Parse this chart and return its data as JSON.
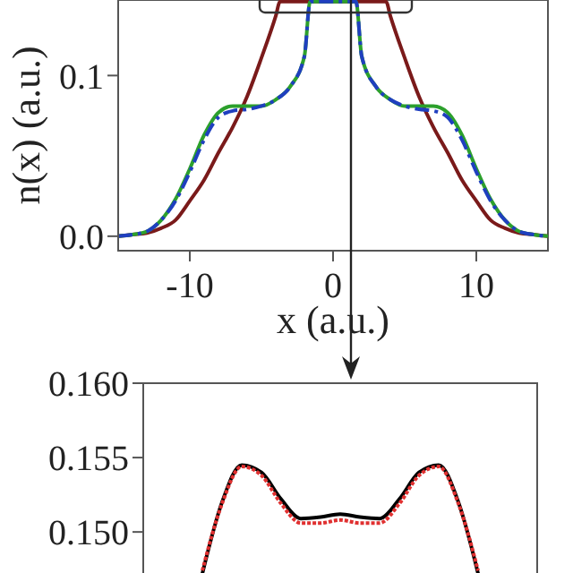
{
  "chart_data": [
    {
      "type": "line",
      "xlabel": "x (a.u.)",
      "ylabel": "n(x) (a.u.)",
      "xlim": [
        -15,
        15
      ],
      "ylim": [
        -0.009,
        0.147
      ],
      "xticks": [
        -10,
        0,
        10
      ],
      "yticks": [
        {
          "value": 0,
          "label": "0.0"
        },
        0.1
      ],
      "grid": false,
      "series": [
        {
          "color": "#7a1a1a",
          "x": [
            -15,
            -14,
            -13,
            -12,
            -11,
            -10,
            -9,
            -8,
            -7,
            -6,
            -5,
            -4,
            -3.7,
            3.7,
            4,
            5,
            6,
            7,
            8,
            9,
            10,
            11,
            12,
            13,
            14,
            15
          ],
          "values": [
            0,
            0.001,
            0.002,
            0.005,
            0.01,
            0.022,
            0.035,
            0.052,
            0.068,
            0.087,
            0.111,
            0.137,
            0.146,
            0.146,
            0.137,
            0.111,
            0.087,
            0.068,
            0.052,
            0.035,
            0.022,
            0.01,
            0.005,
            0.002,
            0.001,
            0
          ]
        },
        {
          "color": "#2ca02c",
          "x": [
            -15,
            -14,
            -13,
            -12,
            -11,
            -10,
            -9,
            -8,
            -7,
            -6,
            -5,
            -4,
            -3,
            -2,
            -1.6,
            1.6,
            2,
            3,
            4,
            5,
            6,
            7,
            8,
            9,
            10,
            11,
            12,
            13,
            14,
            15
          ],
          "values": [
            0,
            0.001,
            0.003,
            0.01,
            0.023,
            0.042,
            0.063,
            0.077,
            0.081,
            0.081,
            0.081,
            0.085,
            0.093,
            0.112,
            0.146,
            0.146,
            0.112,
            0.093,
            0.085,
            0.081,
            0.081,
            0.081,
            0.077,
            0.063,
            0.042,
            0.023,
            0.01,
            0.003,
            0.001,
            0
          ]
        },
        {
          "color": "#1f3fbf",
          "line_style": "dashed",
          "x": [
            -15,
            -14,
            -13,
            -12,
            -11,
            -10,
            -9,
            -8,
            -7,
            -6,
            -5,
            -4,
            -3,
            -2,
            -1.6,
            1.6,
            2,
            3,
            4,
            5,
            6,
            7,
            8,
            9,
            10,
            11,
            12,
            13,
            14,
            15
          ],
          "values": [
            0,
            0.001,
            0.003,
            0.01,
            0.022,
            0.04,
            0.06,
            0.074,
            0.078,
            0.079,
            0.081,
            0.085,
            0.093,
            0.112,
            0.146,
            0.146,
            0.112,
            0.093,
            0.085,
            0.081,
            0.079,
            0.078,
            0.074,
            0.06,
            0.04,
            0.022,
            0.01,
            0.003,
            0.001,
            0
          ]
        }
      ]
    },
    {
      "type": "line",
      "tick_labels": "y",
      "ylim": [
        0.147,
        0.16
      ],
      "yticks": [
        {
          "value": 0.15,
          "label": "0.150"
        },
        0.155,
        {
          "value": 0.16,
          "label": "0.160"
        }
      ],
      "grid": false,
      "categories": [
        null,
        null,
        null,
        null,
        null,
        null,
        null,
        null,
        null,
        null,
        null,
        null,
        null,
        null,
        null,
        null,
        null,
        null,
        null,
        null,
        null
      ],
      "series": [
        {
          "color": "#000000",
          "values": [
            null,
            null,
            null,
            0.1472,
            0.152,
            0.1545,
            0.154,
            0.1522,
            0.1509,
            0.151,
            0.1512,
            0.151,
            0.1509,
            0.1522,
            0.154,
            0.1545,
            0.152,
            0.1472,
            null,
            null,
            null
          ]
        },
        {
          "color": "#e03030",
          "line_style": "dotted",
          "values": [
            null,
            null,
            null,
            0.1474,
            0.1519,
            0.1544,
            0.1538,
            0.1519,
            0.1506,
            0.1506,
            0.1508,
            0.1506,
            0.1506,
            0.1519,
            0.1538,
            0.1544,
            0.1519,
            0.1474,
            null,
            null,
            null
          ]
        }
      ]
    }
  ]
}
